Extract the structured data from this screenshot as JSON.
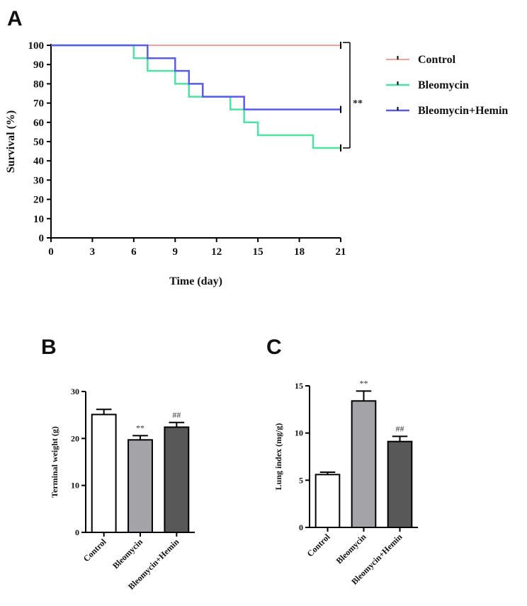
{
  "panels": {
    "a": "A",
    "b": "B",
    "c": "C"
  },
  "chart_data": [
    {
      "type": "line",
      "subtype": "kaplan-meier-survival",
      "xlabel": "Time (day)",
      "ylabel": "Survival (%)",
      "xlim": [
        0,
        21
      ],
      "ylim": [
        0,
        100
      ],
      "xticks": [
        0,
        3,
        6,
        9,
        12,
        15,
        18,
        21
      ],
      "yticks": [
        0,
        10,
        20,
        30,
        40,
        50,
        60,
        70,
        80,
        90,
        100
      ],
      "legend_position": "right",
      "significance": "**",
      "series": [
        {
          "name": "Control",
          "color": "#ef8080",
          "x": [
            0,
            21
          ],
          "y": [
            100,
            100
          ]
        },
        {
          "name": "Bleomycin",
          "color": "#4fe0a4",
          "x": [
            0,
            6,
            7,
            9,
            10,
            13,
            14,
            15,
            19,
            21
          ],
          "y": [
            100,
            93.3,
            86.7,
            80,
            73.3,
            66.7,
            60,
            53.3,
            46.7,
            46.7
          ]
        },
        {
          "name": "Bleomycin+Hemin",
          "color": "#5b5bea",
          "x": [
            0,
            7,
            9,
            10,
            11,
            14,
            21
          ],
          "y": [
            100,
            93.3,
            86.7,
            80,
            73.3,
            66.7,
            66.7
          ]
        }
      ]
    },
    {
      "type": "bar",
      "categories": [
        "Control",
        "Bleomycin",
        "Bleomycin+Hemin"
      ],
      "values": [
        25.1,
        19.7,
        22.4
      ],
      "errors": [
        1.1,
        0.9,
        1.0
      ],
      "colors": [
        "#ffffff",
        "#a3a3a8",
        "#585858"
      ],
      "annotations": [
        "",
        "**",
        "##"
      ],
      "ylabel": "Terminal weight (g)",
      "ylim": [
        0,
        30
      ],
      "yticks": [
        0,
        10,
        20,
        30
      ]
    },
    {
      "type": "bar",
      "categories": [
        "Control",
        "Bleomycin",
        "Bleomycin+Hemin"
      ],
      "values": [
        5.6,
        13.4,
        9.1
      ],
      "errors": [
        0.25,
        1.05,
        0.55
      ],
      "colors": [
        "#ffffff",
        "#a3a3a8",
        "#585858"
      ],
      "annotations": [
        "",
        "**",
        "##"
      ],
      "ylabel": "Lung index (mg/g)",
      "ylim": [
        0,
        15
      ],
      "yticks": [
        0,
        5,
        10,
        15
      ]
    }
  ]
}
